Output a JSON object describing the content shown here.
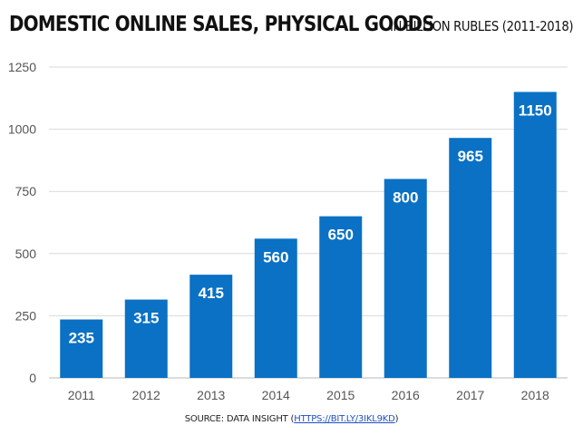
{
  "header": {
    "title": "DOMESTIC ONLINE SALES, PHYSICAL GOODS",
    "subtitle": "IN BILLION RUBLES (2011-2018)"
  },
  "footer": {
    "source_prefix": "SOURCE: DATA INSIGHT (",
    "source_link": "HTTPS://BIT.LY/3IKL9KD",
    "source_suffix": ")"
  },
  "colors": {
    "bar": "#0a71c4",
    "bar_label": "#ffffff",
    "grid": "#d9d9d9",
    "tick_text": "#555555"
  },
  "chart_data": {
    "type": "bar",
    "title": "DOMESTIC ONLINE SALES, PHYSICAL GOODS",
    "subtitle": "IN BILLION RUBLES (2011-2018)",
    "categories": [
      "2011",
      "2012",
      "2013",
      "2014",
      "2015",
      "2016",
      "2017",
      "2018"
    ],
    "values": [
      235,
      315,
      415,
      560,
      650,
      800,
      965,
      1150
    ],
    "data_labels": [
      "235",
      "315",
      "415",
      "560",
      "650",
      "800",
      "965",
      "1150"
    ],
    "xlabel": "",
    "ylabel": "",
    "ylim": [
      0,
      1250
    ],
    "yticks": [
      0,
      250,
      500,
      750,
      1000,
      1250
    ],
    "ytick_labels": [
      "0",
      "250",
      "500",
      "750",
      "1000",
      "1250"
    ],
    "grid": true,
    "legend": "none"
  }
}
